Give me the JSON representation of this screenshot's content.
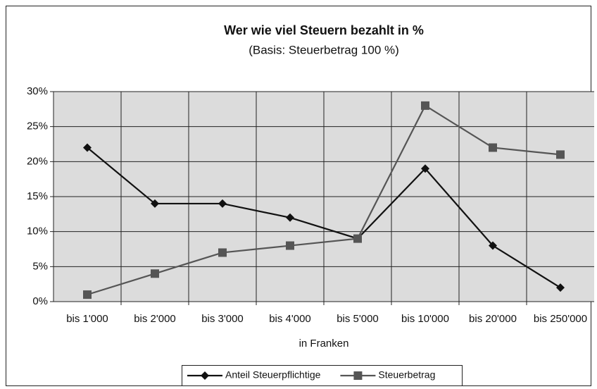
{
  "chart_data": {
    "type": "line",
    "title": "Wer wie viel Steuern bezahlt in %",
    "subtitle": "(Basis: Steuerbetrag 100 %)",
    "x_label": "in Franken",
    "categories": [
      "bis 1'000",
      "bis 2'000",
      "bis 3'000",
      "bis 4'000",
      "bis 5'000",
      "bis 10'000",
      "bis 20'000",
      "bis 250'000"
    ],
    "series": [
      {
        "name": "Anteil Steuerpflichtige",
        "color": "#111111",
        "marker": "diamond",
        "values": [
          22,
          14,
          14,
          12,
          9,
          19,
          8,
          2
        ]
      },
      {
        "name": "Steuerbetrag",
        "color": "#555555",
        "marker": "square",
        "values": [
          1,
          4,
          7,
          8,
          9,
          28,
          22,
          21
        ]
      }
    ],
    "ylim": [
      0,
      30
    ],
    "yticks": [
      {
        "value": 0,
        "label": "0%"
      },
      {
        "value": 5,
        "label": "5%"
      },
      {
        "value": 10,
        "label": "10%"
      },
      {
        "value": 15,
        "label": "15%"
      },
      {
        "value": 20,
        "label": "20%"
      },
      {
        "value": 25,
        "label": "25%"
      },
      {
        "value": 30,
        "label": "30%"
      }
    ],
    "grid": true,
    "legend": "bottom"
  }
}
